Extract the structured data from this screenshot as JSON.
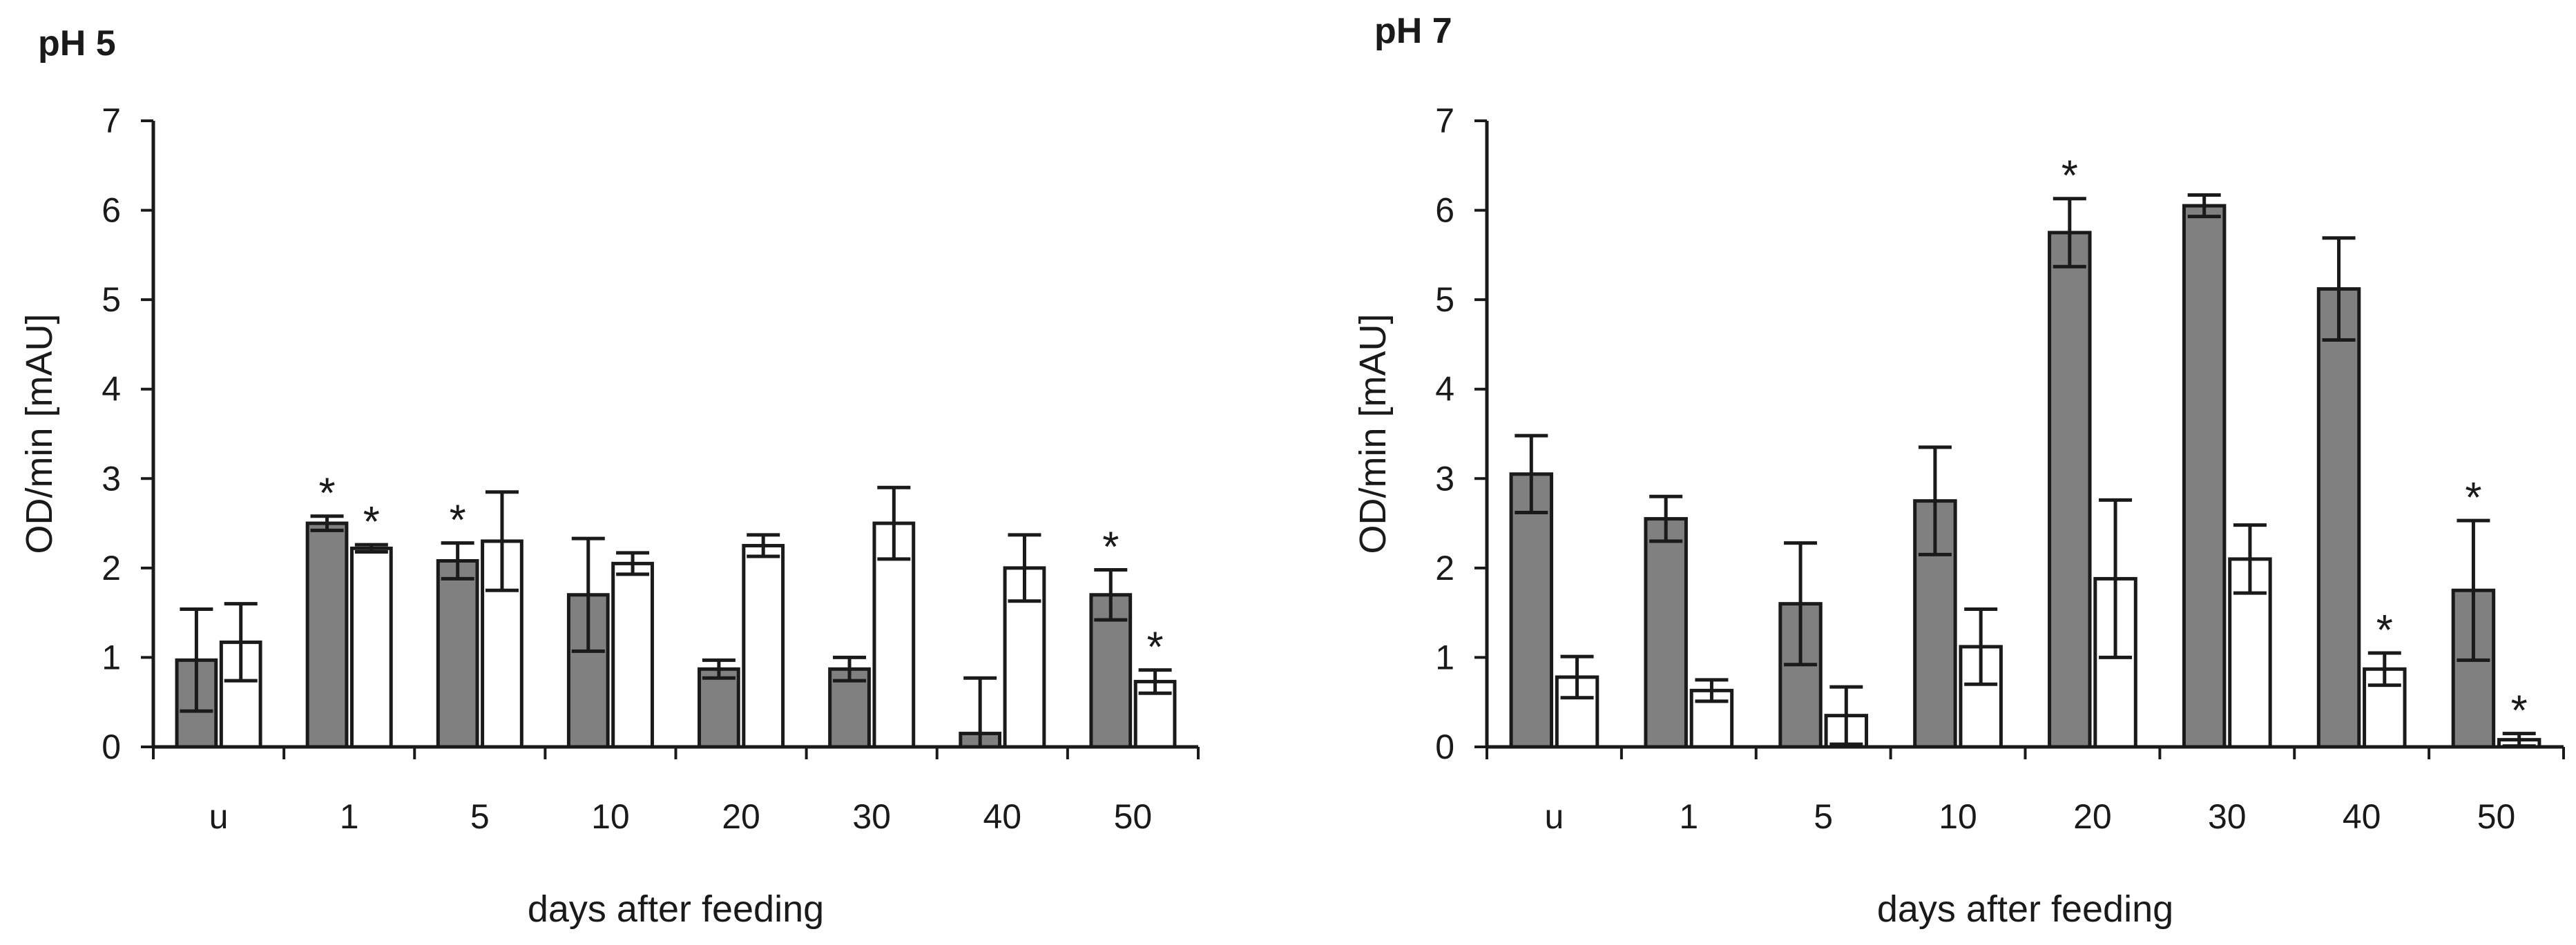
{
  "colors": {
    "filled_bar": "#808080",
    "open_bar": "#ffffff",
    "stroke": "#1a1a1a"
  },
  "chart_data": [
    {
      "type": "bar",
      "title": "pH 5",
      "xlabel": "days after feeding",
      "ylabel": "OD/min [mAU]",
      "ylim": [
        0,
        7
      ],
      "yticks": [
        "0",
        "1",
        "2",
        "3",
        "4",
        "5",
        "6",
        "7"
      ],
      "categories": [
        "u",
        "1",
        "5",
        "10",
        "20",
        "30",
        "40",
        "50"
      ],
      "series": [
        {
          "name": "filled",
          "values": [
            0.97,
            2.5,
            2.08,
            1.7,
            0.87,
            0.87,
            0.15,
            1.7
          ],
          "errors": [
            0.57,
            0.08,
            0.2,
            0.63,
            0.1,
            0.13,
            0.62,
            0.28
          ],
          "asterisks": [
            false,
            true,
            true,
            false,
            false,
            false,
            false,
            true
          ]
        },
        {
          "name": "open",
          "values": [
            1.17,
            2.22,
            2.3,
            2.05,
            2.25,
            2.5,
            2.0,
            0.73
          ],
          "errors": [
            0.43,
            0.04,
            0.55,
            0.12,
            0.12,
            0.4,
            0.37,
            0.13
          ],
          "asterisks": [
            false,
            true,
            false,
            false,
            false,
            false,
            false,
            true
          ]
        }
      ]
    },
    {
      "type": "bar",
      "title": "pH 7",
      "xlabel": "days after feeding",
      "ylabel": "OD/min [mAU]",
      "ylim": [
        0,
        7
      ],
      "yticks": [
        "0",
        "1",
        "2",
        "3",
        "4",
        "5",
        "6",
        "7"
      ],
      "categories": [
        "u",
        "1",
        "5",
        "10",
        "20",
        "30",
        "40",
        "50"
      ],
      "series": [
        {
          "name": "filled",
          "values": [
            3.05,
            2.55,
            1.6,
            2.75,
            5.75,
            6.05,
            5.12,
            1.75
          ],
          "errors": [
            0.43,
            0.25,
            0.68,
            0.6,
            0.38,
            0.12,
            0.57,
            0.78
          ],
          "asterisks": [
            false,
            false,
            false,
            false,
            true,
            false,
            false,
            true
          ]
        },
        {
          "name": "open",
          "values": [
            0.78,
            0.63,
            0.35,
            1.12,
            1.88,
            2.1,
            0.87,
            0.08
          ],
          "errors": [
            0.23,
            0.12,
            0.32,
            0.42,
            0.88,
            0.38,
            0.18,
            0.07
          ],
          "asterisks": [
            false,
            false,
            false,
            false,
            false,
            false,
            true,
            true
          ]
        }
      ]
    }
  ]
}
